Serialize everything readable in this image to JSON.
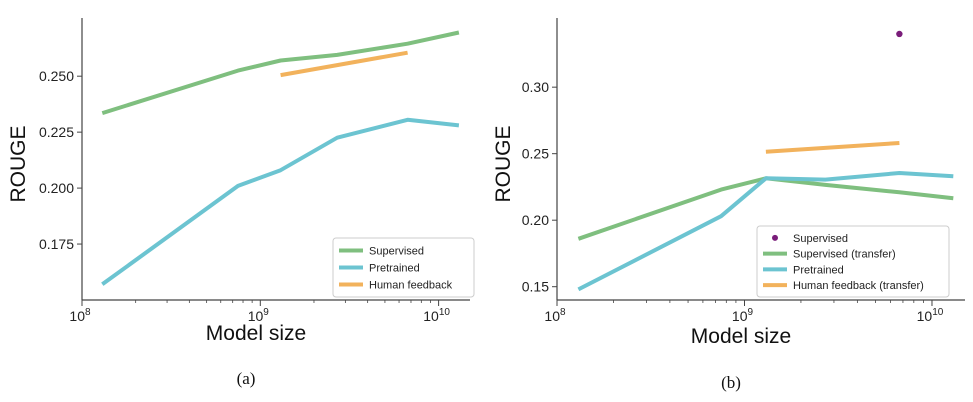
{
  "colors": {
    "supervised": "#7fbf7f",
    "pretrained": "#6cc4d1",
    "human_feedback": "#f2b25c",
    "supervised_point": "#7a1d7a",
    "axis": "#444444"
  },
  "chart_data": [
    {
      "type": "line",
      "caption": "(a)",
      "xlabel": "Model size",
      "ylabel": "ROUGE",
      "xscale": "log",
      "xlim": [
        100000000.0,
        15000000000.0
      ],
      "ylim": [
        0.15,
        0.276
      ],
      "yticks": [
        0.175,
        0.2,
        0.225,
        0.25
      ],
      "ytick_labels": [
        "0.175",
        "0.200",
        "0.225",
        "0.250"
      ],
      "xtick_labels": [
        {
          "base": "10",
          "exp": "8",
          "v": 100000000.0
        },
        {
          "base": "10",
          "exp": "9",
          "v": 1000000000.0
        },
        {
          "base": "10",
          "exp": "10",
          "v": 10000000000.0
        }
      ],
      "grid": false,
      "legend_position": "bottom-right",
      "series": [
        {
          "name": "Supervised",
          "color_key": "supervised",
          "kind": "line",
          "x": [
            130000000.0,
            750000000.0,
            1300000000.0,
            2700000000.0,
            6700000000.0,
            13000000000.0
          ],
          "y": [
            0.2335,
            0.2525,
            0.257,
            0.2595,
            0.2645,
            0.2695
          ]
        },
        {
          "name": "Pretrained",
          "color_key": "pretrained",
          "kind": "line",
          "x": [
            130000000.0,
            750000000.0,
            1300000000.0,
            2700000000.0,
            6700000000.0,
            13000000000.0
          ],
          "y": [
            0.157,
            0.201,
            0.208,
            0.2225,
            0.2305,
            0.228
          ]
        },
        {
          "name": "Human feedback",
          "color_key": "human_feedback",
          "kind": "line",
          "x": [
            1300000000.0,
            6700000000.0
          ],
          "y": [
            0.2505,
            0.2605
          ]
        }
      ]
    },
    {
      "type": "line",
      "caption": "(b)",
      "xlabel": "Model size",
      "ylabel": "ROUGE",
      "xscale": "log",
      "xlim": [
        100000000.0,
        15000000000.0
      ],
      "ylim": [
        0.14,
        0.352
      ],
      "yticks": [
        0.15,
        0.2,
        0.25,
        0.3
      ],
      "ytick_labels": [
        "0.15",
        "0.20",
        "0.25",
        "0.30"
      ],
      "xtick_labels": [
        {
          "base": "10",
          "exp": "8",
          "v": 100000000.0
        },
        {
          "base": "10",
          "exp": "9",
          "v": 1000000000.0
        },
        {
          "base": "10",
          "exp": "10",
          "v": 10000000000.0
        }
      ],
      "grid": false,
      "legend_position": "bottom-right",
      "series": [
        {
          "name": "Supervised",
          "color_key": "supervised_point",
          "kind": "point",
          "x": [
            6700000000.0
          ],
          "y": [
            0.34
          ]
        },
        {
          "name": "Supervised (transfer)",
          "color_key": "supervised",
          "kind": "line",
          "x": [
            130000000.0,
            750000000.0,
            1300000000.0,
            2700000000.0,
            6700000000.0,
            13000000000.0
          ],
          "y": [
            0.186,
            0.223,
            0.2315,
            0.2265,
            0.221,
            0.2165
          ]
        },
        {
          "name": "Pretrained",
          "color_key": "pretrained",
          "kind": "line",
          "x": [
            130000000.0,
            750000000.0,
            1300000000.0,
            2700000000.0,
            6700000000.0,
            13000000000.0
          ],
          "y": [
            0.148,
            0.203,
            0.2315,
            0.2305,
            0.2355,
            0.233
          ]
        },
        {
          "name": "Human feedback (transfer)",
          "color_key": "human_feedback",
          "kind": "line",
          "x": [
            1300000000.0,
            6700000000.0
          ],
          "y": [
            0.2515,
            0.258
          ]
        }
      ]
    }
  ]
}
